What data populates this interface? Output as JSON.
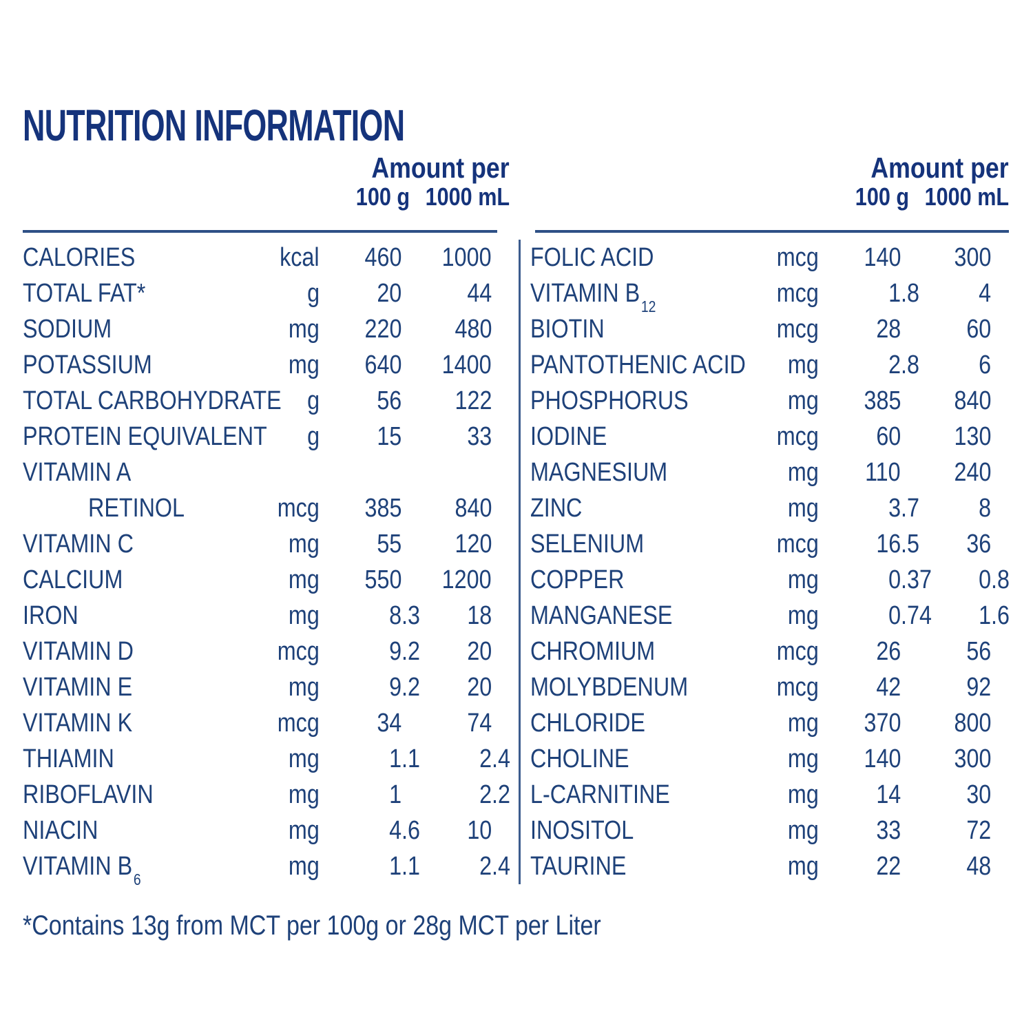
{
  "page": {
    "title": "NUTRITION INFORMATION",
    "footnote": "*Contains 13g from MCT per 100g or 28g MCT per Liter"
  },
  "colors": {
    "background": "#ffffff",
    "title_text": "#15337b",
    "body_text": "#1e4179",
    "header_rule": "#2e5086",
    "column_divider": "#3c5c8e"
  },
  "tables": [
    {
      "side": "left",
      "header": {
        "amount_per": "Amount per",
        "col_100g": "100 g",
        "col_1000ml": "1000 mL"
      },
      "rows": [
        {
          "label": "CALORIES",
          "unit": "kcal",
          "per_100g": "460",
          "per_1000ml": "1000"
        },
        {
          "label": "TOTAL FAT*",
          "unit": "g",
          "per_100g": "20",
          "per_1000ml": "44"
        },
        {
          "label": "SODIUM",
          "unit": "mg",
          "per_100g": "220",
          "per_1000ml": "480"
        },
        {
          "label": "POTASSIUM",
          "unit": "mg",
          "per_100g": "640",
          "per_1000ml": "1400"
        },
        {
          "label": "TOTAL CARBOHYDRATE",
          "unit": "g",
          "per_100g": "56",
          "per_1000ml": "122"
        },
        {
          "label": "PROTEIN EQUIVALENT",
          "unit": "g",
          "per_100g": "15",
          "per_1000ml": "33"
        },
        {
          "label": "VITAMIN A",
          "unit": "",
          "per_100g": "",
          "per_1000ml": ""
        },
        {
          "label": "RETINOL",
          "indent": true,
          "unit": "mcg",
          "per_100g": "385",
          "per_1000ml": "840"
        },
        {
          "label": "VITAMIN C",
          "unit": "mg",
          "per_100g": "55",
          "per_1000ml": "120"
        },
        {
          "label": "CALCIUM",
          "unit": "mg",
          "per_100g": "550",
          "per_1000ml": "1200"
        },
        {
          "label": "IRON",
          "unit": "mg",
          "per_100g": "8.3",
          "per_1000ml": "18"
        },
        {
          "label": "VITAMIN D",
          "unit": "mcg",
          "per_100g": "9.2",
          "per_1000ml": "20"
        },
        {
          "label": "VITAMIN E",
          "unit": "mg",
          "per_100g": "9.2",
          "per_1000ml": "20"
        },
        {
          "label": "VITAMIN K",
          "unit": "mcg",
          "per_100g": "34",
          "per_1000ml": "74"
        },
        {
          "label": "THIAMIN",
          "unit": "mg",
          "per_100g": "1.1",
          "per_1000ml": "2.4"
        },
        {
          "label": "RIBOFLAVIN",
          "unit": "mg",
          "per_100g": "1",
          "per_1000ml": "2.2"
        },
        {
          "label": "NIACIN",
          "unit": "mg",
          "per_100g": "4.6",
          "per_1000ml": "10"
        },
        {
          "label": "VITAMIN B",
          "sub": "6",
          "unit": "mg",
          "per_100g": "1.1",
          "per_1000ml": "2.4"
        }
      ]
    },
    {
      "side": "right",
      "header": {
        "amount_per": "Amount per",
        "col_100g": "100 g",
        "col_1000ml": "1000 mL"
      },
      "rows": [
        {
          "label": "FOLIC ACID",
          "unit": "mcg",
          "per_100g": "140",
          "per_1000ml": "300"
        },
        {
          "label": "VITAMIN B",
          "sub": "12",
          "unit": "mcg",
          "per_100g": "1.8",
          "per_1000ml": "4"
        },
        {
          "label": "BIOTIN",
          "unit": "mcg",
          "per_100g": "28",
          "per_1000ml": "60"
        },
        {
          "label": "PANTOTHENIC ACID",
          "unit": "mg",
          "per_100g": "2.8",
          "per_1000ml": "6"
        },
        {
          "label": "PHOSPHORUS",
          "unit": "mg",
          "per_100g": "385",
          "per_1000ml": "840"
        },
        {
          "label": "IODINE",
          "unit": "mcg",
          "per_100g": "60",
          "per_1000ml": "130"
        },
        {
          "label": "MAGNESIUM",
          "unit": "mg",
          "per_100g": "110",
          "per_1000ml": "240"
        },
        {
          "label": "ZINC",
          "unit": "mg",
          "per_100g": "3.7",
          "per_1000ml": "8"
        },
        {
          "label": "SELENIUM",
          "unit": "mcg",
          "per_100g": "16.5",
          "per_1000ml": "36"
        },
        {
          "label": "COPPER",
          "unit": "mg",
          "per_100g": "0.37",
          "per_1000ml": "0.8"
        },
        {
          "label": "MANGANESE",
          "unit": "mg",
          "per_100g": "0.74",
          "per_1000ml": "1.6"
        },
        {
          "label": "CHROMIUM",
          "unit": "mcg",
          "per_100g": "26",
          "per_1000ml": "56"
        },
        {
          "label": "MOLYBDENUM",
          "unit": "mcg",
          "per_100g": "42",
          "per_1000ml": "92"
        },
        {
          "label": "CHLORIDE",
          "unit": "mg",
          "per_100g": "370",
          "per_1000ml": "800"
        },
        {
          "label": "CHOLINE",
          "unit": "mg",
          "per_100g": "140",
          "per_1000ml": "300"
        },
        {
          "label": "L-CARNITINE",
          "unit": "mg",
          "per_100g": "14",
          "per_1000ml": "30"
        },
        {
          "label": "INOSITOL",
          "unit": "mg",
          "per_100g": "33",
          "per_1000ml": "72"
        },
        {
          "label": "TAURINE",
          "unit": "mg",
          "per_100g": "22",
          "per_1000ml": "48"
        }
      ]
    }
  ]
}
